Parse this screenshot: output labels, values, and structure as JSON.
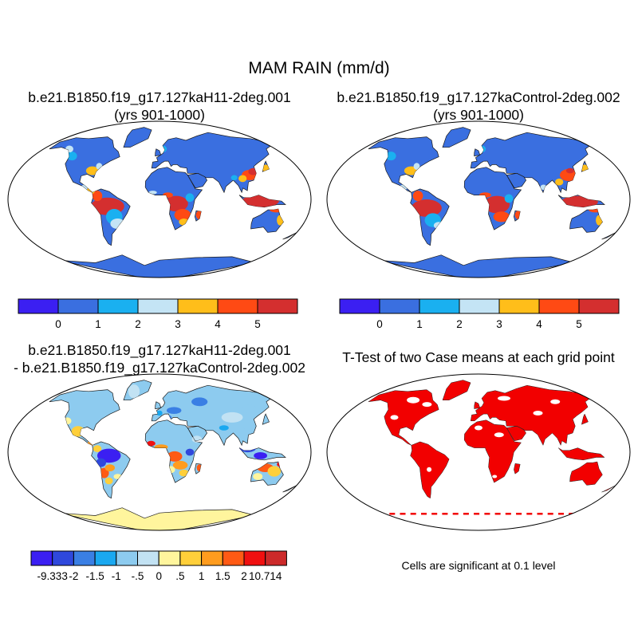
{
  "title": "MAM RAIN (mm/d)",
  "panels": {
    "top_left": {
      "title_line1": "b.e21.B1850.f19_g17.127kaH11-2deg.001",
      "title_line2": "(yrs 901-1000)"
    },
    "top_right": {
      "title_line1": "b.e21.B1850.f19_g17.127kaControl-2deg.002",
      "title_line2": "(yrs 901-1000)"
    },
    "bottom_left": {
      "title_line1": "b.e21.B1850.f19_g17.127kaH11-2deg.001",
      "title_line2": "- b.e21.B1850.f19_g17.127kaControl-2deg.002"
    },
    "bottom_right": {
      "title": "T-Test of two Case means at each grid point",
      "note": "Cells are significant at 0.1 level"
    }
  },
  "colorbar_main": {
    "colors": [
      "#3b1ff2",
      "#3a6fe0",
      "#1ab0f0",
      "#c4e4f5",
      "#ffbe1a",
      "#ff4a14",
      "#d42f2f"
    ],
    "labels": [
      "0",
      "1",
      "2",
      "3",
      "4",
      "5"
    ]
  },
  "colorbar_diff": {
    "colors": [
      "#3b1ff2",
      "#2f48dc",
      "#3a7fe4",
      "#1aa8f0",
      "#8dcbef",
      "#c2e2f3",
      "#fff59d",
      "#ffcf3a",
      "#ff9c1e",
      "#ff5a14",
      "#f01010",
      "#cc2a2a"
    ],
    "labels": [
      "-9.333",
      "-2",
      "-1.5",
      "-1",
      "-.5",
      "0",
      ".5",
      "1",
      "1.5",
      "2",
      "10.714"
    ]
  },
  "colors": {
    "ocean": "#ffffff",
    "map_frame": "#000000",
    "significance": "#f20000"
  }
}
